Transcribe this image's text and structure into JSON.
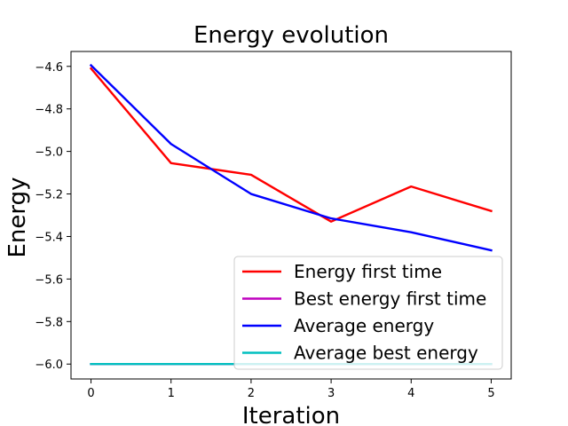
{
  "chart_data": {
    "type": "line",
    "title": "Energy evolution",
    "xlabel": "Iteration",
    "ylabel": "Energy",
    "xlim": [
      -0.25,
      5.25
    ],
    "ylim": [
      -6.07,
      -4.53
    ],
    "xticks": [
      0,
      1,
      2,
      3,
      4,
      5
    ],
    "yticks": [
      -6.0,
      -5.8,
      -5.6,
      -5.4,
      -5.2,
      -5.0,
      -4.8,
      -4.6
    ],
    "ytick_labels": [
      "−6.0",
      "−5.8",
      "−5.6",
      "−5.4",
      "−5.2",
      "−5.0",
      "−4.8",
      "−4.6"
    ],
    "x": [
      0,
      1,
      2,
      3,
      4,
      5
    ],
    "grid": false,
    "legend_position": "lower-right",
    "series": [
      {
        "name": "Energy first time",
        "color": "#ff0000",
        "values": [
          -4.61,
          -5.055,
          -5.11,
          -5.33,
          -5.165,
          -5.28
        ]
      },
      {
        "name": "Best energy first time",
        "color": "#bf00bf",
        "values": [
          -6.0,
          -6.0,
          -6.0,
          -6.0,
          -6.0,
          -6.0
        ]
      },
      {
        "name": "Average energy",
        "color": "#0000ff",
        "values": [
          -4.595,
          -4.965,
          -5.2,
          -5.315,
          -5.38,
          -5.465
        ]
      },
      {
        "name": "Average best energy",
        "color": "#00bfbf",
        "values": [
          -6.0,
          -6.0,
          -6.0,
          -6.0,
          -6.0,
          -6.0
        ]
      }
    ]
  }
}
